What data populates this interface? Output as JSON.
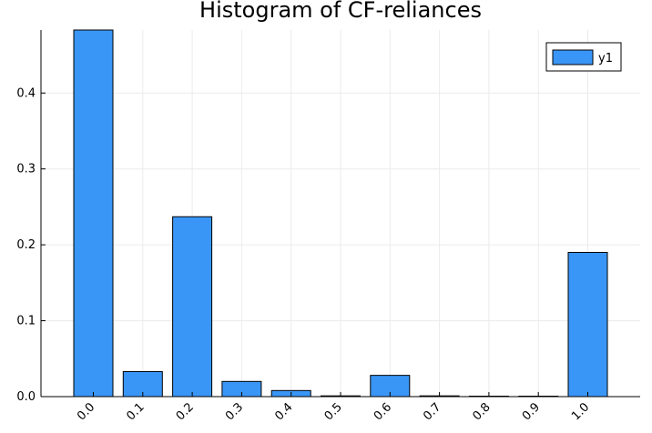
{
  "chart_data": {
    "type": "bar",
    "title": "Histogram of CF-reliances",
    "xlabel": "",
    "ylabel": "",
    "categories": [
      "0.0",
      "0.1",
      "0.2",
      "0.3",
      "0.4",
      "0.5",
      "0.6",
      "0.7",
      "0.8",
      "0.9",
      "1.0"
    ],
    "series": [
      {
        "name": "y1",
        "values": [
          0.483,
          0.033,
          0.237,
          0.02,
          0.008,
          0.001,
          0.028,
          0.001,
          0.0005,
          0.0005,
          0.19
        ]
      }
    ],
    "ylim": [
      0,
      0.483
    ],
    "yticks": [
      0.0,
      0.1,
      0.2,
      0.3,
      0.4
    ],
    "ytick_labels": [
      "0.0",
      "0.1",
      "0.2",
      "0.3",
      "0.4"
    ],
    "grid": true,
    "legend": "top-right",
    "colors": {
      "bar": "#3a96f6",
      "bar_edge": "#000000",
      "grid": "#ebebeb",
      "axis": "#000000"
    }
  }
}
